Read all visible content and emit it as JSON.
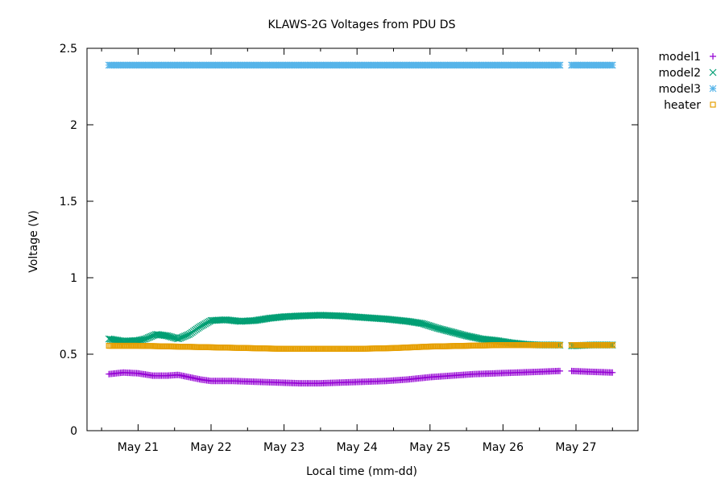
{
  "chart_data": {
    "type": "scatter",
    "title": "KLAWS-2G Voltages from PDU    DS",
    "xlabel": "Local time (mm-dd)",
    "ylabel": "Voltage (V)",
    "x_ticks": [
      "May 21",
      "May 22",
      "May 23",
      "May 24",
      "May 25",
      "May 26",
      "May 27"
    ],
    "y_ticks": [
      "0",
      "0.5",
      "1",
      "1.5",
      "2",
      "2.5"
    ],
    "xlim_days": [
      20.3,
      27.85
    ],
    "ylim": [
      0,
      2.5
    ],
    "legend_position": "top-right (outside plot)",
    "grid": false,
    "data_gap_days": [
      26.78,
      26.93
    ],
    "series": [
      {
        "name": "model1",
        "color": "#9400d3",
        "marker": "plus",
        "points": [
          [
            20.6,
            0.37
          ],
          [
            20.8,
            0.38
          ],
          [
            21.0,
            0.375
          ],
          [
            21.2,
            0.36
          ],
          [
            21.4,
            0.36
          ],
          [
            21.55,
            0.365
          ],
          [
            21.7,
            0.35
          ],
          [
            21.85,
            0.335
          ],
          [
            22.0,
            0.325
          ],
          [
            22.3,
            0.325
          ],
          [
            22.6,
            0.32
          ],
          [
            22.9,
            0.315
          ],
          [
            23.2,
            0.31
          ],
          [
            23.5,
            0.31
          ],
          [
            23.8,
            0.315
          ],
          [
            24.1,
            0.32
          ],
          [
            24.4,
            0.325
          ],
          [
            24.7,
            0.335
          ],
          [
            25.0,
            0.35
          ],
          [
            25.3,
            0.36
          ],
          [
            25.6,
            0.37
          ],
          [
            25.9,
            0.375
          ],
          [
            26.2,
            0.38
          ],
          [
            26.5,
            0.385
          ],
          [
            26.75,
            0.39
          ],
          [
            26.95,
            0.39
          ],
          [
            27.2,
            0.385
          ],
          [
            27.5,
            0.38
          ]
        ]
      },
      {
        "name": "model2",
        "color": "#009e73",
        "marker": "cross",
        "points": [
          [
            20.6,
            0.6
          ],
          [
            20.8,
            0.585
          ],
          [
            21.0,
            0.59
          ],
          [
            21.1,
            0.6
          ],
          [
            21.25,
            0.63
          ],
          [
            21.4,
            0.62
          ],
          [
            21.55,
            0.6
          ],
          [
            21.7,
            0.63
          ],
          [
            21.85,
            0.68
          ],
          [
            22.0,
            0.72
          ],
          [
            22.2,
            0.725
          ],
          [
            22.4,
            0.715
          ],
          [
            22.6,
            0.72
          ],
          [
            22.8,
            0.735
          ],
          [
            23.0,
            0.745
          ],
          [
            23.2,
            0.75
          ],
          [
            23.5,
            0.755
          ],
          [
            23.8,
            0.75
          ],
          [
            24.1,
            0.74
          ],
          [
            24.4,
            0.73
          ],
          [
            24.7,
            0.715
          ],
          [
            24.9,
            0.7
          ],
          [
            25.1,
            0.67
          ],
          [
            25.3,
            0.645
          ],
          [
            25.5,
            0.62
          ],
          [
            25.7,
            0.6
          ],
          [
            25.9,
            0.59
          ],
          [
            26.1,
            0.575
          ],
          [
            26.3,
            0.565
          ],
          [
            26.5,
            0.56
          ],
          [
            26.75,
            0.56
          ],
          [
            26.95,
            0.555
          ],
          [
            27.2,
            0.56
          ],
          [
            27.5,
            0.56
          ]
        ]
      },
      {
        "name": "model3",
        "color": "#56b4e9",
        "marker": "star",
        "points": [
          [
            20.6,
            2.39
          ],
          [
            21.5,
            2.39
          ],
          [
            22.5,
            2.39
          ],
          [
            23.5,
            2.39
          ],
          [
            24.5,
            2.39
          ],
          [
            25.5,
            2.39
          ],
          [
            26.5,
            2.39
          ],
          [
            26.75,
            2.39
          ],
          [
            26.95,
            2.39
          ],
          [
            27.5,
            2.39
          ]
        ]
      },
      {
        "name": "heater",
        "color": "#e69f00",
        "marker": "square",
        "points": [
          [
            20.6,
            0.555
          ],
          [
            21.0,
            0.555
          ],
          [
            21.5,
            0.55
          ],
          [
            22.0,
            0.545
          ],
          [
            22.5,
            0.54
          ],
          [
            23.0,
            0.535
          ],
          [
            23.5,
            0.535
          ],
          [
            24.0,
            0.535
          ],
          [
            24.5,
            0.54
          ],
          [
            25.0,
            0.55
          ],
          [
            25.5,
            0.555
          ],
          [
            26.0,
            0.56
          ],
          [
            26.5,
            0.56
          ],
          [
            26.75,
            0.56
          ],
          [
            26.95,
            0.56
          ],
          [
            27.5,
            0.56
          ]
        ]
      }
    ]
  }
}
